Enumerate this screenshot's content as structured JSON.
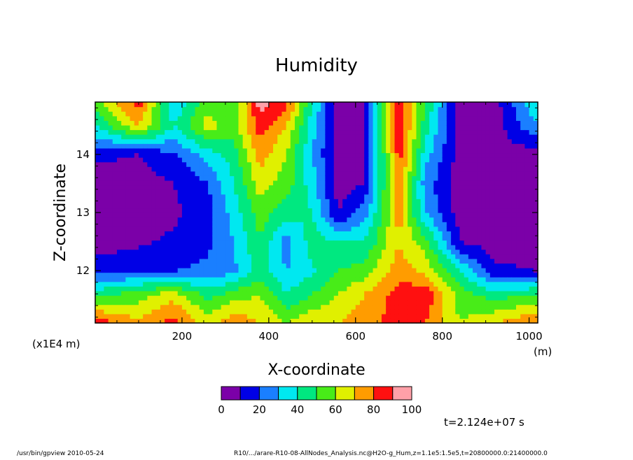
{
  "chart_data": {
    "type": "heatmap",
    "title": "Humidity",
    "xlabel": "X-coordinate",
    "ylabel": "Z-coordinate",
    "x_unit": "(m)",
    "y_scale_note": "(x1E4 m)",
    "xlim": [
      0,
      1020
    ],
    "ylim": [
      11.1,
      14.9
    ],
    "x_ticks": [
      "200",
      "400",
      "600",
      "800",
      "1000"
    ],
    "x_tick_values": [
      200,
      400,
      600,
      800,
      1000
    ],
    "y_ticks": [
      "12",
      "13",
      "14"
    ],
    "y_tick_values": [
      12,
      13,
      14
    ],
    "colorbar": {
      "levels": [
        0,
        10,
        20,
        30,
        40,
        50,
        60,
        70,
        80,
        90,
        100
      ],
      "labels": [
        "0",
        "20",
        "40",
        "60",
        "80",
        "100"
      ],
      "colors": [
        "#7b00a8",
        "#0000e6",
        "#1a7fff",
        "#00e8f0",
        "#00e880",
        "#48ec18",
        "#e0f000",
        "#ff9c00",
        "#ff1010",
        "#ffa0a8"
      ]
    },
    "profiles": {
      "z_levels": [
        11.1,
        11.6,
        12.0,
        12.5,
        13.0,
        13.5,
        14.0,
        14.5,
        14.9
      ],
      "x_positions": [
        0,
        100,
        180,
        260,
        320,
        380,
        440,
        500,
        560,
        620,
        700,
        760,
        840,
        920,
        1020
      ],
      "humidity": [
        [
          88,
          72,
          85,
          65,
          78,
          70,
          60,
          68,
          70,
          75,
          85,
          80,
          60,
          70,
          82
        ],
        [
          45,
          55,
          65,
          45,
          55,
          60,
          40,
          50,
          60,
          70,
          85,
          88,
          55,
          45,
          50
        ],
        [
          15,
          18,
          20,
          22,
          28,
          45,
          30,
          38,
          50,
          55,
          75,
          68,
          40,
          12,
          10
        ],
        [
          5,
          8,
          12,
          18,
          30,
          50,
          25,
          45,
          40,
          40,
          70,
          55,
          10,
          5,
          5
        ],
        [
          5,
          5,
          8,
          15,
          35,
          55,
          45,
          40,
          10,
          25,
          75,
          30,
          5,
          5,
          5
        ],
        [
          5,
          5,
          10,
          20,
          40,
          65,
          55,
          35,
          5,
          10,
          80,
          25,
          5,
          5,
          5
        ],
        [
          12,
          10,
          18,
          35,
          45,
          75,
          60,
          30,
          5,
          5,
          85,
          35,
          5,
          5,
          5
        ],
        [
          40,
          70,
          40,
          65,
          55,
          85,
          70,
          35,
          5,
          5,
          90,
          45,
          5,
          5,
          30
        ],
        [
          55,
          85,
          30,
          55,
          50,
          95,
          85,
          40,
          5,
          5,
          90,
          50,
          5,
          5,
          40
        ]
      ]
    }
  },
  "time_label": "t=2.124e+07 s",
  "footer": {
    "left": "/usr/bin/gpview  2010-05-24",
    "right": "R10/.../arare-R10-08-AllNodes_Analysis.nc@H2O-g_Hum,z=1.1e5:1.5e5,t=20800000.0:21400000.0"
  }
}
